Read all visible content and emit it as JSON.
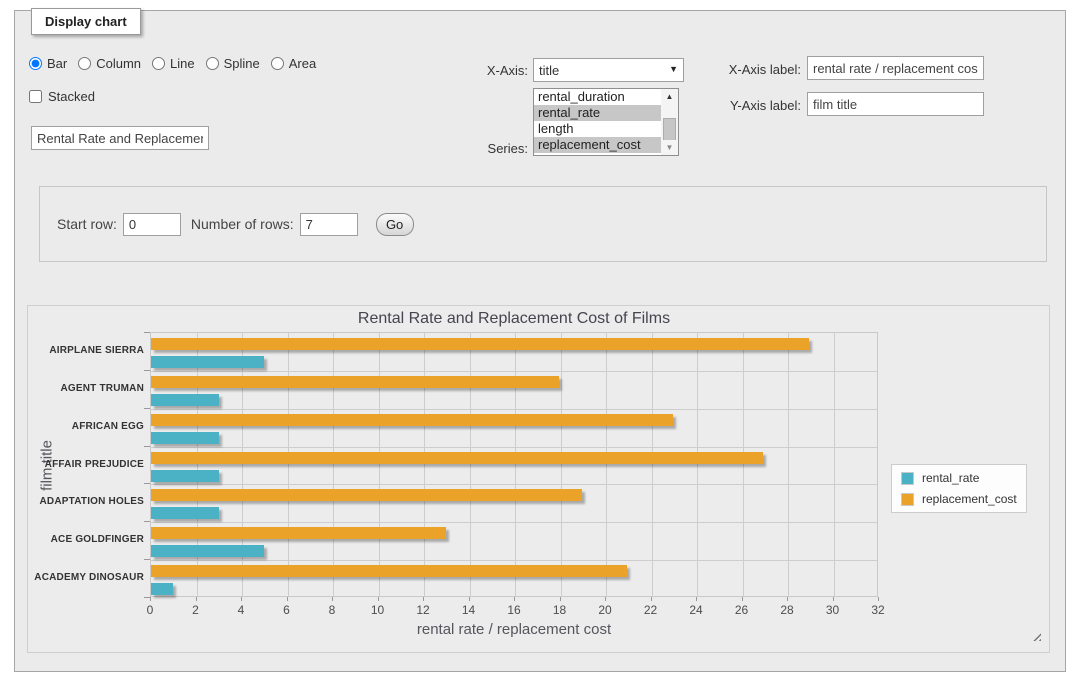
{
  "form": {
    "legend": "Display chart",
    "chart_type_options": [
      {
        "label": "Bar",
        "selected": true
      },
      {
        "label": "Column",
        "selected": false
      },
      {
        "label": "Line",
        "selected": false
      },
      {
        "label": "Spline",
        "selected": false
      },
      {
        "label": "Area",
        "selected": false
      }
    ],
    "stacked": {
      "label": "Stacked",
      "checked": false
    },
    "chart_title_input": {
      "value": "Rental Rate and Replacement Cost of Films"
    },
    "x_axis": {
      "label": "X-Axis:",
      "selected": "title"
    },
    "series_select": {
      "label": "Series:",
      "options": [
        {
          "label": "rental_duration",
          "selected": false
        },
        {
          "label": "rental_rate",
          "selected": true
        },
        {
          "label": "length",
          "selected": false
        },
        {
          "label": "replacement_cost",
          "selected": true
        }
      ]
    },
    "x_axis_label_field": {
      "label": "X-Axis label:",
      "value": "rental rate / replacement cost"
    },
    "y_axis_label_field": {
      "label": "Y-Axis label:",
      "value": "film title"
    },
    "row_controls": {
      "start_label": "Start row:",
      "start_value": "0",
      "count_label": "Number of rows:",
      "count_value": "7",
      "go_label": "Go"
    }
  },
  "chart_data": {
    "type": "bar",
    "orientation": "horizontal",
    "title": "Rental Rate and Replacement Cost of Films",
    "xlabel": "rental rate / replacement cost",
    "ylabel": "film title",
    "categories": [
      "AIRPLANE SIERRA",
      "AGENT TRUMAN",
      "AFRICAN EGG",
      "AFFAIR PREJUDICE",
      "ADAPTATION HOLES",
      "ACE GOLDFINGER",
      "ACADEMY DINOSAUR"
    ],
    "series": [
      {
        "name": "rental_rate",
        "color": "#4bb2c5",
        "values": [
          4.99,
          2.99,
          2.99,
          2.99,
          2.99,
          4.99,
          0.99
        ]
      },
      {
        "name": "replacement_cost",
        "color": "#eaa228",
        "values": [
          28.99,
          17.99,
          22.99,
          26.99,
          18.99,
          12.99,
          20.99
        ]
      }
    ],
    "xlim": [
      0,
      32
    ],
    "x_ticks": [
      0,
      2,
      4,
      6,
      8,
      10,
      12,
      14,
      16,
      18,
      20,
      22,
      24,
      26,
      28,
      30,
      32
    ],
    "grid": true,
    "legend_position": "right"
  }
}
